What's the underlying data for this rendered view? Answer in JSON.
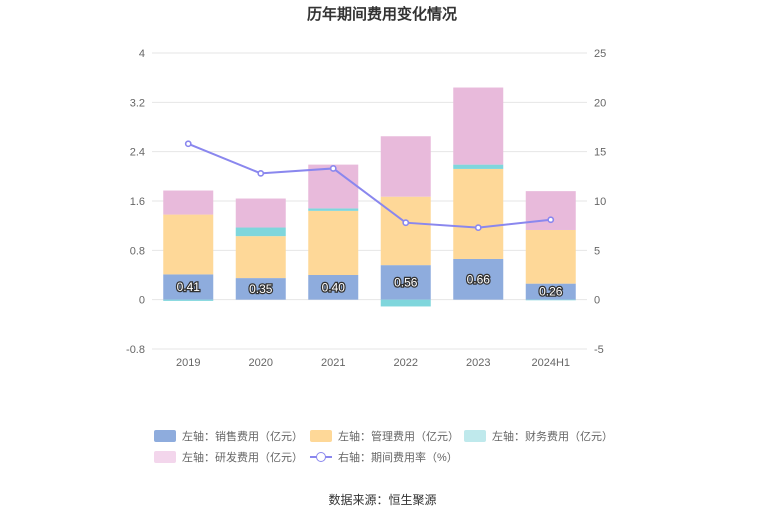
{
  "chart_data": {
    "type": "bar",
    "title": "历年期间费用变化情况",
    "categories": [
      "2019",
      "2020",
      "2021",
      "2022",
      "2023",
      "2024H1"
    ],
    "stacked": true,
    "left_axis": {
      "ylim": [
        -0.8,
        4
      ],
      "ticks": [
        "-0.8",
        "0",
        "0.8",
        "1.6",
        "2.4",
        "3.2",
        "4"
      ]
    },
    "right_axis": {
      "ylim": [
        -5,
        25
      ],
      "ticks": [
        "-5",
        "0",
        "5",
        "10",
        "15",
        "20",
        "25"
      ]
    },
    "series": [
      {
        "name": "左轴：销售费用（亿元）",
        "type": "bar",
        "axis": "left",
        "color": "#8eacdd",
        "values": [
          0.41,
          0.35,
          0.4,
          0.56,
          0.66,
          0.26
        ],
        "labels": [
          "0.41",
          "0.35",
          "0.40",
          "0.56",
          "0.66",
          "0.26"
        ]
      },
      {
        "name": "左轴：管理费用（亿元）",
        "type": "bar",
        "axis": "left",
        "color": "#fed898",
        "values": [
          0.97,
          0.68,
          1.04,
          1.11,
          1.46,
          0.87
        ]
      },
      {
        "name": "左轴：财务费用（亿元）",
        "type": "bar",
        "axis": "left",
        "color": "#7fd6dc",
        "values": [
          -0.02,
          0.14,
          0.04,
          -0.11,
          0.07,
          -0.01
        ]
      },
      {
        "name": "左轴：研发费用（亿元）",
        "type": "bar",
        "axis": "left",
        "color": "#e8badb",
        "values": [
          0.39,
          0.47,
          0.71,
          0.98,
          1.25,
          0.63
        ]
      },
      {
        "name": "右轴：期间费用率（%）",
        "type": "line",
        "axis": "right",
        "color": "#8a87ee",
        "values": [
          15.8,
          12.8,
          13.3,
          7.8,
          7.3,
          8.1
        ]
      }
    ],
    "legend_position": "bottom",
    "grid": true
  },
  "source": "数据来源：恒生聚源"
}
